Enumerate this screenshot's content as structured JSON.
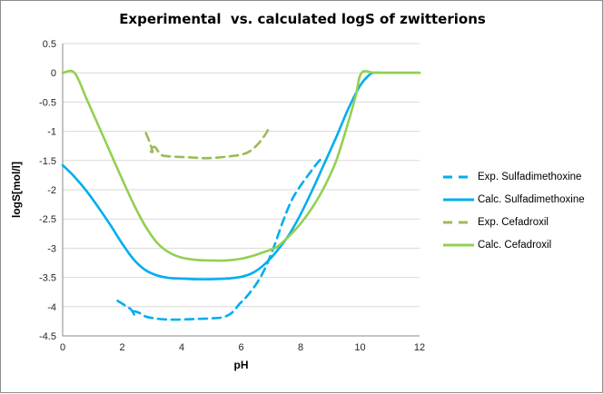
{
  "title": "Experimental  vs. calculated logS of zwitterions",
  "chart_data": {
    "type": "line",
    "title": "Experimental  vs. calculated logS of zwitterions",
    "xlabel": "pH",
    "ylabel": "logS[mol/l]",
    "xlim": [
      0,
      12
    ],
    "ylim": [
      -4.5,
      0.5
    ],
    "x_ticks": [
      "0",
      "2",
      "4",
      "6",
      "8",
      "10",
      "12"
    ],
    "y_ticks": [
      "0.5",
      "0",
      "-0.5",
      "-1",
      "-1.5",
      "-2",
      "-2.5",
      "-3",
      "-3.5",
      "-4",
      "-4.5"
    ],
    "grid": "horizontal",
    "legend_position": "right",
    "series": [
      {
        "name": "Exp. Sulfadimethoxine",
        "color": "#00AEEF",
        "line_style": "dashed",
        "points": [
          [
            1.85,
            -3.9
          ],
          [
            2.1,
            -3.98
          ],
          [
            2.3,
            -4.05
          ],
          [
            2.42,
            -4.15
          ],
          [
            2.35,
            -4.08
          ],
          [
            2.55,
            -4.1
          ],
          [
            2.8,
            -4.17
          ],
          [
            3.1,
            -4.2
          ],
          [
            3.5,
            -4.22
          ],
          [
            4.0,
            -4.22
          ],
          [
            4.5,
            -4.21
          ],
          [
            5.0,
            -4.2
          ],
          [
            5.4,
            -4.18
          ],
          [
            5.7,
            -4.1
          ],
          [
            5.95,
            -3.95
          ],
          [
            6.15,
            -3.85
          ],
          [
            6.5,
            -3.62
          ],
          [
            6.8,
            -3.35
          ],
          [
            7.1,
            -2.98
          ],
          [
            7.4,
            -2.55
          ],
          [
            7.7,
            -2.18
          ],
          [
            8.0,
            -1.93
          ],
          [
            8.3,
            -1.72
          ],
          [
            8.55,
            -1.55
          ],
          [
            8.75,
            -1.44
          ]
        ]
      },
      {
        "name": "Calc. Sulfadimethoxine",
        "color": "#00AEEF",
        "line_style": "solid",
        "points": [
          [
            0,
            -1.58
          ],
          [
            0.4,
            -1.78
          ],
          [
            0.8,
            -2.02
          ],
          [
            1.2,
            -2.3
          ],
          [
            1.6,
            -2.6
          ],
          [
            2.0,
            -2.92
          ],
          [
            2.4,
            -3.2
          ],
          [
            2.8,
            -3.38
          ],
          [
            3.2,
            -3.47
          ],
          [
            3.6,
            -3.51
          ],
          [
            4.0,
            -3.52
          ],
          [
            4.5,
            -3.53
          ],
          [
            5.0,
            -3.53
          ],
          [
            5.5,
            -3.52
          ],
          [
            6.0,
            -3.49
          ],
          [
            6.4,
            -3.42
          ],
          [
            6.8,
            -3.27
          ],
          [
            7.2,
            -3.05
          ],
          [
            7.6,
            -2.78
          ],
          [
            8.0,
            -2.42
          ],
          [
            8.4,
            -2.0
          ],
          [
            8.8,
            -1.55
          ],
          [
            9.2,
            -1.1
          ],
          [
            9.6,
            -0.62
          ],
          [
            10.0,
            -0.22
          ],
          [
            10.3,
            -0.04
          ],
          [
            10.45,
            0
          ],
          [
            10.8,
            0
          ],
          [
            11.4,
            0
          ],
          [
            12,
            0
          ]
        ]
      },
      {
        "name": "Exp. Cefadroxil",
        "color": "#9BBB59",
        "line_style": "dashed",
        "points": [
          [
            2.8,
            -1.03
          ],
          [
            2.92,
            -1.18
          ],
          [
            3.02,
            -1.35
          ],
          [
            2.93,
            -1.32
          ],
          [
            3.1,
            -1.27
          ],
          [
            3.3,
            -1.4
          ],
          [
            3.6,
            -1.43
          ],
          [
            4.0,
            -1.44
          ],
          [
            4.4,
            -1.45
          ],
          [
            4.8,
            -1.46
          ],
          [
            5.2,
            -1.45
          ],
          [
            5.6,
            -1.43
          ],
          [
            6.0,
            -1.4
          ],
          [
            6.3,
            -1.34
          ],
          [
            6.6,
            -1.2
          ],
          [
            6.82,
            -1.05
          ],
          [
            6.9,
            -0.98
          ]
        ]
      },
      {
        "name": "Calc. Cefadroxil",
        "color": "#92D050",
        "line_style": "solid",
        "points": [
          [
            0,
            0
          ],
          [
            0.4,
            0
          ],
          [
            0.8,
            -0.44
          ],
          [
            1.2,
            -0.9
          ],
          [
            1.6,
            -1.36
          ],
          [
            2.0,
            -1.82
          ],
          [
            2.4,
            -2.26
          ],
          [
            2.8,
            -2.64
          ],
          [
            3.2,
            -2.92
          ],
          [
            3.6,
            -3.08
          ],
          [
            4.0,
            -3.16
          ],
          [
            4.5,
            -3.2
          ],
          [
            5.0,
            -3.21
          ],
          [
            5.5,
            -3.21
          ],
          [
            6.0,
            -3.18
          ],
          [
            6.4,
            -3.13
          ],
          [
            6.8,
            -3.06
          ],
          [
            7.2,
            -2.98
          ],
          [
            7.6,
            -2.8
          ],
          [
            8.0,
            -2.58
          ],
          [
            8.4,
            -2.3
          ],
          [
            8.8,
            -1.95
          ],
          [
            9.2,
            -1.5
          ],
          [
            9.6,
            -0.85
          ],
          [
            9.85,
            -0.4
          ],
          [
            10.05,
            0
          ],
          [
            10.5,
            0
          ],
          [
            11.25,
            0
          ],
          [
            12,
            0
          ]
        ]
      }
    ]
  },
  "colors": {
    "grid": "#D9D9D9",
    "axis": "#898989",
    "figure_border": "#8C8C8C",
    "background": "#FFFFFF"
  }
}
